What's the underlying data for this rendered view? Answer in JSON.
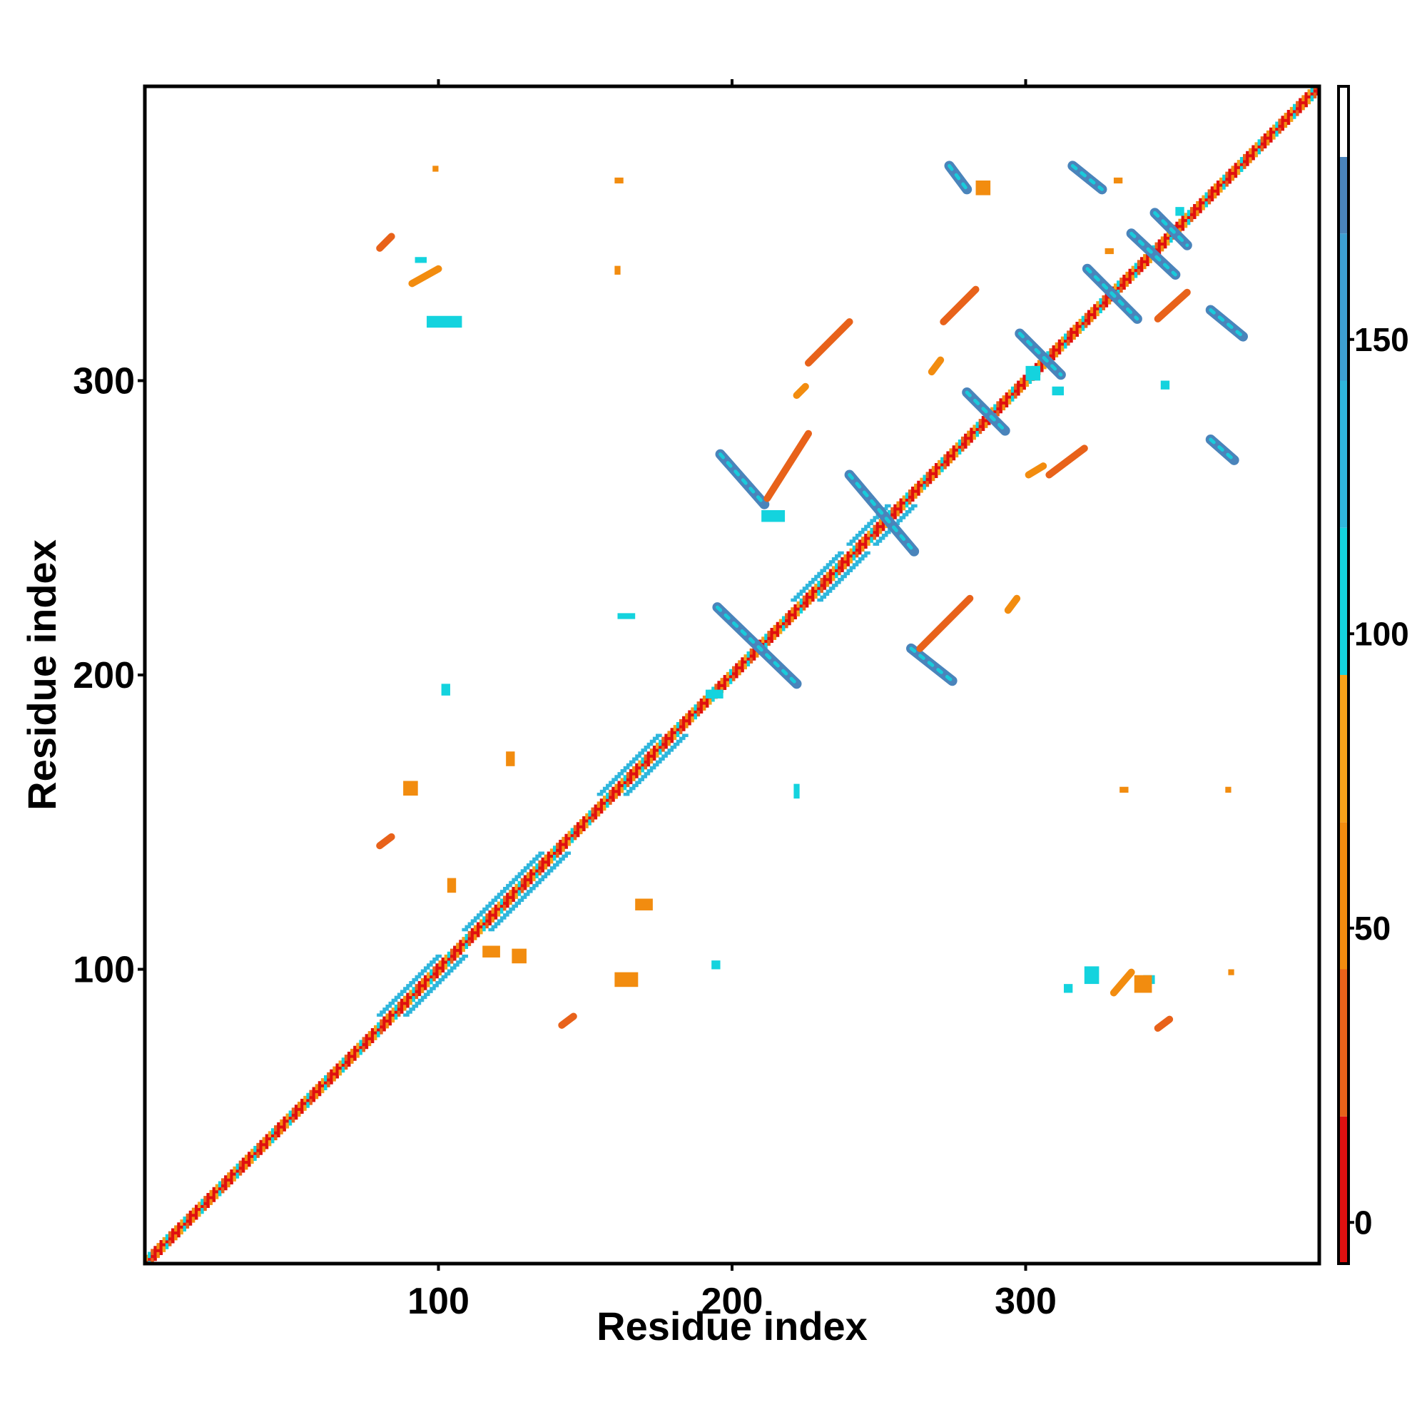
{
  "chart_data": {
    "type": "heatmap",
    "title": "",
    "xlabel": "Residue index",
    "ylabel": "Residue index",
    "xlim": [
      0,
      400
    ],
    "ylim": [
      0,
      400
    ],
    "x_ticks": [
      100,
      200,
      300
    ],
    "y_ticks": [
      100,
      200,
      300
    ],
    "grid": false,
    "colorbar": {
      "ticks": [
        0,
        50,
        100,
        150
      ],
      "range": [
        -7,
        193
      ],
      "bins": [
        {
          "from": -7,
          "to": 18,
          "color": "#e01010"
        },
        {
          "from": 18,
          "to": 43,
          "color": "#e8621a"
        },
        {
          "from": 43,
          "to": 68,
          "color": "#f28c0f"
        },
        {
          "from": 68,
          "to": 93,
          "color": "#f6a21a"
        },
        {
          "from": 93,
          "to": 118,
          "color": "#14d3de"
        },
        {
          "from": 118,
          "to": 143,
          "color": "#2fb6dc"
        },
        {
          "from": 143,
          "to": 168,
          "color": "#3d9fd2"
        },
        {
          "from": 168,
          "to": 181,
          "color": "#4a84bb"
        },
        {
          "from": 181,
          "to": 193,
          "color": "#ffffff"
        }
      ]
    },
    "features": {
      "diagonal": {
        "from": 1,
        "to": 400
      },
      "diagonal_bands": [
        {
          "from": 85,
          "to": 105,
          "color": "#2fb6dc"
        },
        {
          "from": 114,
          "to": 140,
          "color": "#2fb6dc"
        },
        {
          "from": 160,
          "to": 180,
          "color": "#2fb6dc"
        },
        {
          "from": 226,
          "to": 242,
          "color": "#2fb6dc"
        },
        {
          "from": 245,
          "to": 258,
          "color": "#2fb6dc"
        }
      ],
      "antiparallel_strands": [
        {
          "x1": 195,
          "y1": 223,
          "x2": 222,
          "y2": 197,
          "color": "#4a84bb"
        },
        {
          "x1": 240,
          "y1": 268,
          "x2": 262,
          "y2": 242,
          "color": "#4a84bb"
        },
        {
          "x1": 196,
          "y1": 275,
          "x2": 211,
          "y2": 258,
          "color": "#4a84bb"
        },
        {
          "x1": 261,
          "y1": 209,
          "x2": 275,
          "y2": 198,
          "color": "#4a84bb"
        },
        {
          "x1": 280,
          "y1": 296,
          "x2": 293,
          "y2": 283,
          "color": "#4a84bb"
        },
        {
          "x1": 298,
          "y1": 316,
          "x2": 312,
          "y2": 302,
          "color": "#4a84bb"
        },
        {
          "x1": 321,
          "y1": 338,
          "x2": 338,
          "y2": 321,
          "color": "#4a84bb"
        },
        {
          "x1": 336,
          "y1": 350,
          "x2": 351,
          "y2": 336,
          "color": "#4a84bb"
        },
        {
          "x1": 344,
          "y1": 357,
          "x2": 355,
          "y2": 346,
          "color": "#4a84bb"
        },
        {
          "x1": 274,
          "y1": 373,
          "x2": 280,
          "y2": 365,
          "color": "#4a84bb"
        },
        {
          "x1": 316,
          "y1": 373,
          "x2": 326,
          "y2": 365,
          "color": "#4a84bb"
        },
        {
          "x1": 363,
          "y1": 324,
          "x2": 374,
          "y2": 315,
          "color": "#4a84bb"
        },
        {
          "x1": 363,
          "y1": 280,
          "x2": 371,
          "y2": 273,
          "color": "#4a84bb"
        }
      ],
      "parallel_contacts": [
        {
          "x1": 212,
          "y1": 260,
          "x2": 226,
          "y2": 282,
          "color": "#e8621a"
        },
        {
          "x1": 264,
          "y1": 209,
          "x2": 281,
          "y2": 226,
          "color": "#e8621a"
        },
        {
          "x1": 80,
          "y1": 142,
          "x2": 84,
          "y2": 145,
          "color": "#e8621a"
        },
        {
          "x1": 142,
          "y1": 81,
          "x2": 146,
          "y2": 84,
          "color": "#e8621a"
        },
        {
          "x1": 80,
          "y1": 345,
          "x2": 84,
          "y2": 349,
          "color": "#e8621a"
        },
        {
          "x1": 345,
          "y1": 80,
          "x2": 349,
          "y2": 83,
          "color": "#e8621a"
        },
        {
          "x1": 91,
          "y1": 333,
          "x2": 100,
          "y2": 338,
          "color": "#f28c0f"
        },
        {
          "x1": 330,
          "y1": 92,
          "x2": 336,
          "y2": 99,
          "color": "#f28c0f"
        },
        {
          "x1": 222,
          "y1": 295,
          "x2": 225,
          "y2": 298,
          "color": "#f28c0f"
        },
        {
          "x1": 294,
          "y1": 222,
          "x2": 297,
          "y2": 226,
          "color": "#f28c0f"
        },
        {
          "x1": 268,
          "y1": 303,
          "x2": 271,
          "y2": 307,
          "color": "#f28c0f"
        },
        {
          "x1": 301,
          "y1": 268,
          "x2": 306,
          "y2": 271,
          "color": "#f28c0f"
        },
        {
          "x1": 226,
          "y1": 306,
          "x2": 240,
          "y2": 320,
          "color": "#e8621a"
        },
        {
          "x1": 272,
          "y1": 320,
          "x2": 283,
          "y2": 331,
          "color": "#e8621a"
        },
        {
          "x1": 308,
          "y1": 268,
          "x2": 320,
          "y2": 277,
          "color": "#e8621a"
        },
        {
          "x1": 345,
          "y1": 321,
          "x2": 355,
          "y2": 330,
          "color": "#e8621a"
        }
      ],
      "cyan_patches": [
        {
          "x": 96,
          "y": 318,
          "w": 12,
          "h": 4
        },
        {
          "x": 210,
          "y": 252,
          "w": 8,
          "h": 4
        },
        {
          "x": 320,
          "y": 95,
          "w": 5,
          "h": 6
        },
        {
          "x": 340,
          "y": 95,
          "w": 4,
          "h": 3
        },
        {
          "x": 191,
          "y": 192,
          "w": 6,
          "h": 3
        },
        {
          "x": 193,
          "y": 100,
          "w": 3,
          "h": 3
        },
        {
          "x": 161,
          "y": 219,
          "w": 6,
          "h": 2
        },
        {
          "x": 101,
          "y": 193,
          "w": 3,
          "h": 4
        },
        {
          "x": 221,
          "y": 158,
          "w": 2,
          "h": 5
        },
        {
          "x": 300,
          "y": 300,
          "w": 5,
          "h": 5
        },
        {
          "x": 309,
          "y": 295,
          "w": 4,
          "h": 3
        },
        {
          "x": 92,
          "y": 340,
          "w": 4,
          "h": 2
        },
        {
          "x": 351,
          "y": 356,
          "w": 3,
          "h": 3
        },
        {
          "x": 346,
          "y": 297,
          "w": 3,
          "h": 3
        },
        {
          "x": 313,
          "y": 92,
          "w": 3,
          "h": 3
        }
      ],
      "orange_patches": [
        {
          "x": 88,
          "y": 159,
          "w": 5,
          "h": 5
        },
        {
          "x": 115,
          "y": 104,
          "w": 6,
          "h": 4
        },
        {
          "x": 160,
          "y": 94,
          "w": 8,
          "h": 5
        },
        {
          "x": 167,
          "y": 120,
          "w": 6,
          "h": 4
        },
        {
          "x": 123,
          "y": 169,
          "w": 3,
          "h": 5
        },
        {
          "x": 103,
          "y": 126,
          "w": 3,
          "h": 5
        },
        {
          "x": 125,
          "y": 102,
          "w": 5,
          "h": 5
        },
        {
          "x": 337,
          "y": 92,
          "w": 6,
          "h": 6
        },
        {
          "x": 98,
          "y": 371,
          "w": 2,
          "h": 2
        },
        {
          "x": 160,
          "y": 367,
          "w": 3,
          "h": 2
        },
        {
          "x": 330,
          "y": 367,
          "w": 3,
          "h": 2
        },
        {
          "x": 327,
          "y": 343,
          "w": 3,
          "h": 2
        },
        {
          "x": 283,
          "y": 363,
          "w": 5,
          "h": 5
        },
        {
          "x": 160,
          "y": 336,
          "w": 2,
          "h": 3
        },
        {
          "x": 332,
          "y": 160,
          "w": 3,
          "h": 2
        },
        {
          "x": 368,
          "y": 160,
          "w": 2,
          "h": 2
        },
        {
          "x": 369,
          "y": 98,
          "w": 2,
          "h": 2
        }
      ]
    }
  }
}
